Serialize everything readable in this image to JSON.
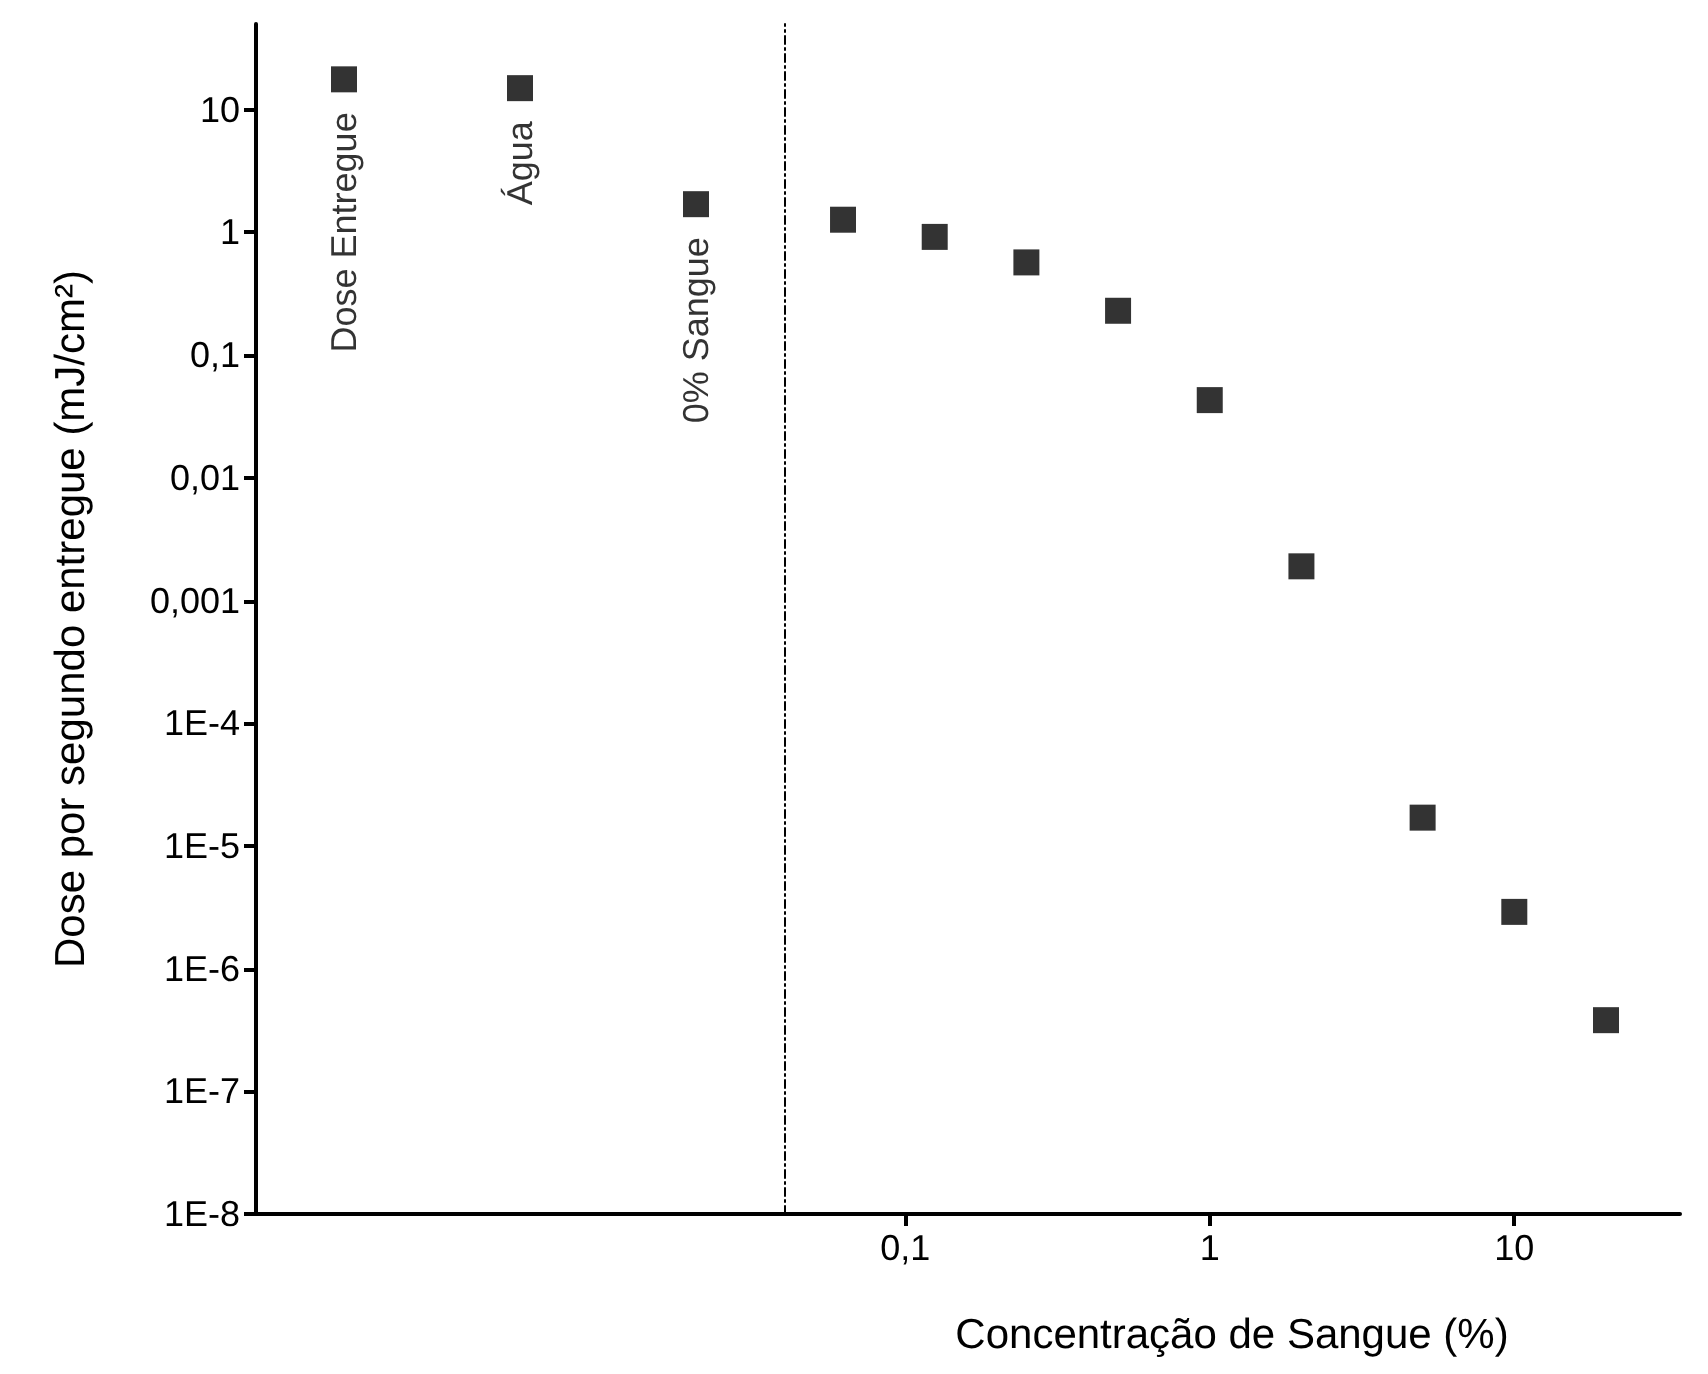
{
  "chart_data": [
    {
      "type": "scatter",
      "ylabel": "Dose por segundo entregue (mJ/cm²)",
      "categories": [
        "Dose Entregue",
        "Água",
        "0% Sangue"
      ],
      "marker": "square",
      "tick_labels": "y",
      "series": [
        {
          "color": "#000000",
          "values": [
            17.7,
            15,
            1.7
          ]
        }
      ],
      "log": "y",
      "ylim": [
        1e-08,
        50
      ],
      "yticks": [
        {
          "value": 1e-08,
          "label": "1E-8"
        },
        {
          "value": 1e-07,
          "label": "1E-7"
        },
        {
          "value": 1e-06,
          "label": "1E-6"
        },
        {
          "value": 1e-05,
          "label": "1E-5"
        },
        {
          "value": 0.0001,
          "label": "1E-4"
        },
        {
          "value": 0.001,
          "label": "0,001"
        },
        {
          "value": 0.01,
          "label": "0,01"
        },
        {
          "value": 0.1,
          "label": "0,1"
        },
        1,
        10
      ]
    },
    {
      "type": "scatter",
      "xlabel": "Concentração de Sangue (%)",
      "marker": "square",
      "tick_labels": "x",
      "log": "xy",
      "x": [
        0.0625,
        0.125,
        0.25,
        0.5,
        1,
        2,
        5,
        10,
        20
      ],
      "series": [
        {
          "color": "#000000",
          "values": [
            1.27,
            0.92,
            0.57,
            0.23,
            0.043,
            0.0019,
            1.7e-05,
            2.9e-06,
            3.8e-07
          ]
        }
      ],
      "xlim": [
        0.04,
        35
      ],
      "xticks": [
        {
          "value": 0.1,
          "label": "0,1"
        },
        1,
        10
      ],
      "ylim": [
        1e-08,
        50
      ]
    }
  ]
}
